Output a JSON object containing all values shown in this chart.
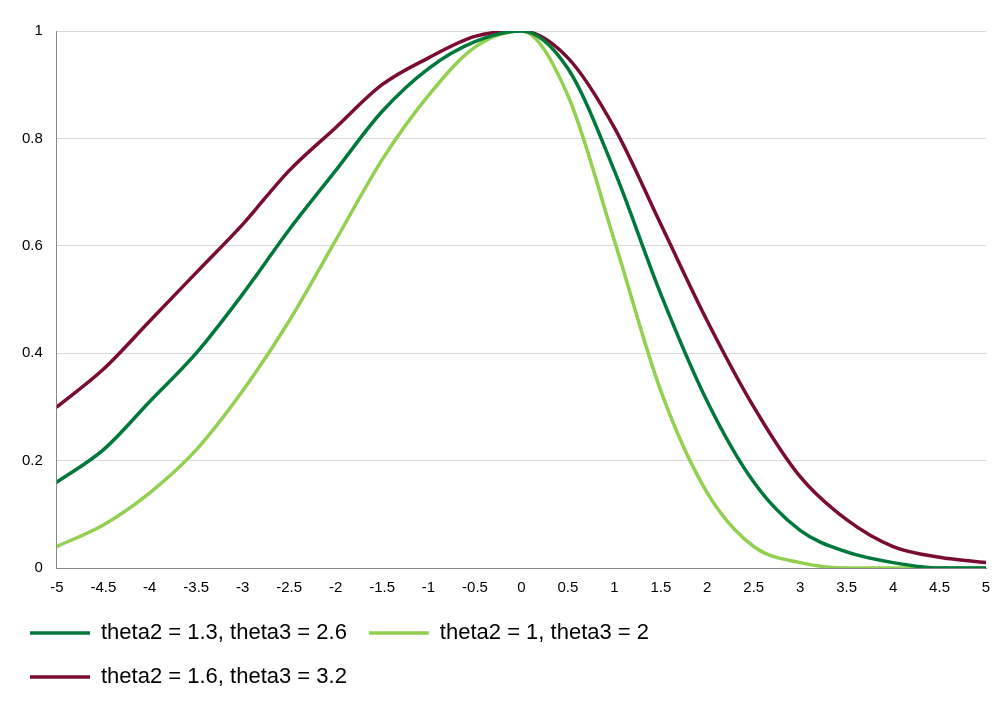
{
  "chart_data": {
    "type": "line",
    "x": [
      -5,
      -4.5,
      -4,
      -3.5,
      -3,
      -2.5,
      -2,
      -1.5,
      -1,
      -0.5,
      0,
      0.5,
      1,
      1.5,
      2,
      2.5,
      3,
      3.5,
      4,
      4.5,
      5
    ],
    "series": [
      {
        "name": "theta2 = 1.3, theta3 = 2.6",
        "color": "#00783c",
        "values": [
          0.16,
          0.22,
          0.31,
          0.4,
          0.51,
          0.63,
          0.74,
          0.85,
          0.93,
          0.98,
          1,
          0.93,
          0.74,
          0.51,
          0.31,
          0.16,
          0.07,
          0.03,
          0.01,
          0,
          0
        ]
      },
      {
        "name": "theta2 = 1, theta3 = 2",
        "color": "#92d050",
        "values": [
          0.04,
          0.08,
          0.14,
          0.22,
          0.33,
          0.46,
          0.61,
          0.76,
          0.88,
          0.97,
          1,
          0.88,
          0.61,
          0.33,
          0.14,
          0.04,
          0.01,
          0,
          0,
          0,
          0
        ]
      },
      {
        "name": "theta2 = 1.6, theta3 = 3.2",
        "color": "#7a0c34",
        "values": [
          0.3,
          0.37,
          0.46,
          0.55,
          0.64,
          0.74,
          0.82,
          0.9,
          0.95,
          0.99,
          1,
          0.95,
          0.82,
          0.64,
          0.46,
          0.3,
          0.17,
          0.09,
          0.04,
          0.02,
          0.01
        ]
      }
    ],
    "xlim": [
      -5,
      5
    ],
    "xticks": [
      -5,
      -4.5,
      -4,
      -3.5,
      -3,
      -2.5,
      -2,
      -1.5,
      -1,
      -0.5,
      0,
      0.5,
      1,
      1.5,
      2,
      2.5,
      3,
      3.5,
      4,
      4.5,
      5
    ],
    "ylim": [
      0,
      1
    ],
    "yticks": [
      0,
      0.2,
      0.4,
      0.6,
      0.8,
      1
    ],
    "grid": "y",
    "legend": "bottom",
    "marker": "none",
    "line_style": "solid"
  }
}
